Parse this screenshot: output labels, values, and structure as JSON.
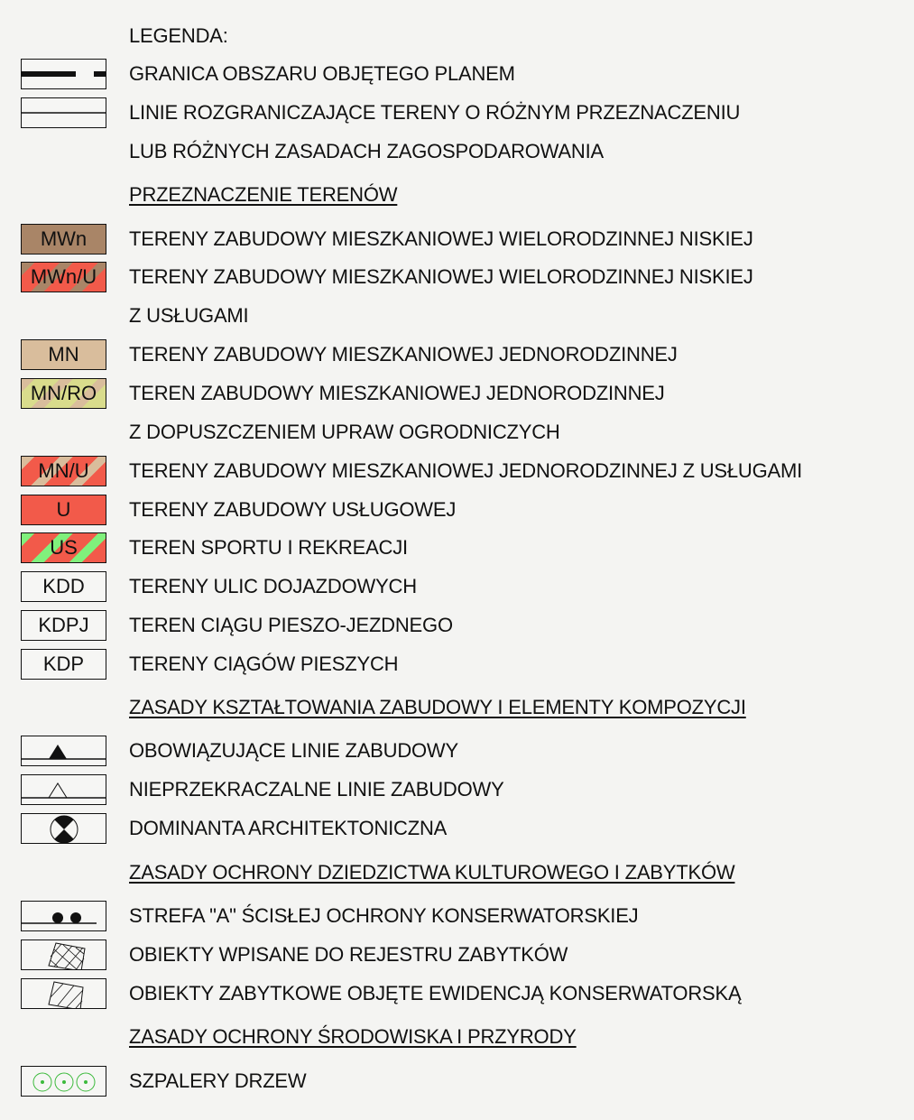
{
  "title": "LEGENDA:",
  "rows": [
    {
      "kind": "item",
      "label": "GRANICA OBSZARU OBJĘTEGO PLANEM",
      "symbol": {
        "type": "dash-line",
        "icon": "boundary-line-icon"
      }
    },
    {
      "kind": "item",
      "label": "LINIE ROZGRANICZAJĄCE TERENY O RÓŻNYM PRZEZNACZENIU",
      "symbol": {
        "type": "thin-line",
        "icon": "demarcation-line-icon"
      }
    },
    {
      "kind": "cont",
      "label": "LUB RÓŻNYCH ZASADACH ZAGOSPODAROWANIA"
    },
    {
      "kind": "heading",
      "label": "PRZEZNACZENIE TERENÓW"
    },
    {
      "kind": "item",
      "label": "TERENY ZABUDOWY MIESZKANIOWEJ WIELORODZINNEJ NISKIEJ",
      "symbol": {
        "type": "swatch",
        "code": "MWn",
        "colors": [
          "#a98567"
        ]
      }
    },
    {
      "kind": "item",
      "label": "TERENY ZABUDOWY MIESZKANIOWEJ WIELORODZINNEJ NISKIEJ",
      "symbol": {
        "type": "stripes",
        "code": "MWn/U",
        "colors": [
          "#f25a4a",
          "#a98567"
        ]
      }
    },
    {
      "kind": "cont",
      "label": "Z USŁUGAMI"
    },
    {
      "kind": "item",
      "label": "TERENY ZABUDOWY MIESZKANIOWEJ JEDNORODZINNEJ",
      "symbol": {
        "type": "swatch",
        "code": "MN",
        "colors": [
          "#d9bd9c"
        ]
      }
    },
    {
      "kind": "item",
      "label": "TEREN ZABUDOWY MIESZKANIOWEJ JEDNORODZINNEJ",
      "symbol": {
        "type": "stripes",
        "code": "MN/RO",
        "colors": [
          "#d9dc8c",
          "#d9bd9c"
        ]
      }
    },
    {
      "kind": "cont",
      "label": "Z DOPUSZCZENIEM UPRAW OGRODNICZYCH"
    },
    {
      "kind": "item",
      "label": "TERENY ZABUDOWY MIESZKANIOWEJ JEDNORODZINNEJ Z USŁUGAMI",
      "symbol": {
        "type": "stripes",
        "code": "MN/U",
        "colors": [
          "#f25a4a",
          "#d9bd9c"
        ]
      }
    },
    {
      "kind": "item",
      "label": "TERENY ZABUDOWY USŁUGOWEJ",
      "symbol": {
        "type": "swatch",
        "code": "U",
        "colors": [
          "#f25a4a"
        ]
      }
    },
    {
      "kind": "item",
      "label": "TEREN SPORTU I REKREACJI",
      "symbol": {
        "type": "stripes",
        "code": "US",
        "colors": [
          "#f25a4a",
          "#80f07c"
        ]
      }
    },
    {
      "kind": "item",
      "label": "TERENY ULIC DOJAZDOWYCH",
      "symbol": {
        "type": "swatch",
        "code": "KDD",
        "colors": [
          "#f6f6f4"
        ]
      }
    },
    {
      "kind": "item",
      "label": "TEREN CIĄGU PIESZO-JEZDNEGO",
      "symbol": {
        "type": "swatch",
        "code": "KDPJ",
        "colors": [
          "#f6f6f4"
        ]
      }
    },
    {
      "kind": "item",
      "label": "TERENY CIĄGÓW PIESZYCH",
      "symbol": {
        "type": "swatch",
        "code": "KDP",
        "colors": [
          "#f6f6f4"
        ]
      }
    },
    {
      "kind": "heading",
      "label": "ZASADY KSZTAŁTOWANIA ZABUDOWY I ELEMENTY KOMPOZYCJI"
    },
    {
      "kind": "item",
      "label": "OBOWIĄZUJĄCE LINIE ZABUDOWY",
      "symbol": {
        "type": "filled-triangle",
        "icon": "filled-triangle-line-icon"
      }
    },
    {
      "kind": "item",
      "label": "NIEPRZEKRACZALNE LINIE ZABUDOWY",
      "symbol": {
        "type": "open-triangle",
        "icon": "open-triangle-line-icon"
      }
    },
    {
      "kind": "item",
      "label": "DOMINANTA ARCHITEKTONICZNA",
      "symbol": {
        "type": "dominant",
        "icon": "dominant-circle-icon"
      }
    },
    {
      "kind": "heading",
      "label": "ZASADY OCHRONY DZIEDZICTWA KULTUROWEGO I ZABYTKÓW"
    },
    {
      "kind": "item",
      "label": "STREFA \"A\" ŚCISŁEJ OCHRONY KONSERWATORSKIEJ",
      "symbol": {
        "type": "dots-line",
        "icon": "dots-line-icon"
      }
    },
    {
      "kind": "item",
      "label": "OBIEKTY WPISANE DO REJESTRU ZABYTKÓW",
      "symbol": {
        "type": "cross-hatch",
        "icon": "cross-hatched-square-icon"
      }
    },
    {
      "kind": "item",
      "label": "OBIEKTY ZABYTKOWE OBJĘTE EWIDENCJĄ KONSERWATORSKĄ",
      "symbol": {
        "type": "hatch",
        "icon": "hatched-square-icon"
      }
    },
    {
      "kind": "heading",
      "label": "ZASADY OCHRONY ŚRODOWISKA I PRZYRODY"
    },
    {
      "kind": "item",
      "label": "SZPALERY DRZEW",
      "symbol": {
        "type": "trees",
        "icon": "tree-row-icon",
        "colors": [
          "#3cba3c"
        ]
      }
    }
  ]
}
